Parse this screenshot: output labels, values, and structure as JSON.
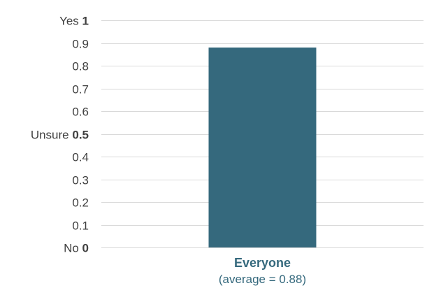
{
  "chart_data": {
    "type": "bar",
    "categories": [
      "Everyone"
    ],
    "category_sublabels": [
      "(average = 0.88)"
    ],
    "values": [
      0.88
    ],
    "ylim": [
      0,
      1
    ],
    "y_ticks": [
      {
        "value": 0,
        "label": "0",
        "prefix": "No"
      },
      {
        "value": 0.1,
        "label": "0.1",
        "prefix": ""
      },
      {
        "value": 0.2,
        "label": "0.2",
        "prefix": ""
      },
      {
        "value": 0.3,
        "label": "0.3",
        "prefix": ""
      },
      {
        "value": 0.4,
        "label": "0.4",
        "prefix": ""
      },
      {
        "value": 0.5,
        "label": "0.5",
        "prefix": "Unsure"
      },
      {
        "value": 0.6,
        "label": "0.6",
        "prefix": ""
      },
      {
        "value": 0.7,
        "label": "0.7",
        "prefix": ""
      },
      {
        "value": 0.8,
        "label": "0.8",
        "prefix": ""
      },
      {
        "value": 0.9,
        "label": "0.9",
        "prefix": ""
      },
      {
        "value": 1,
        "label": "1",
        "prefix": "Yes"
      }
    ],
    "grid": true,
    "legend": "none",
    "colors": {
      "bar": "#35697d",
      "grid": "#d9d9d9",
      "category_label": "#35697d",
      "tick_text": "#404040"
    }
  }
}
